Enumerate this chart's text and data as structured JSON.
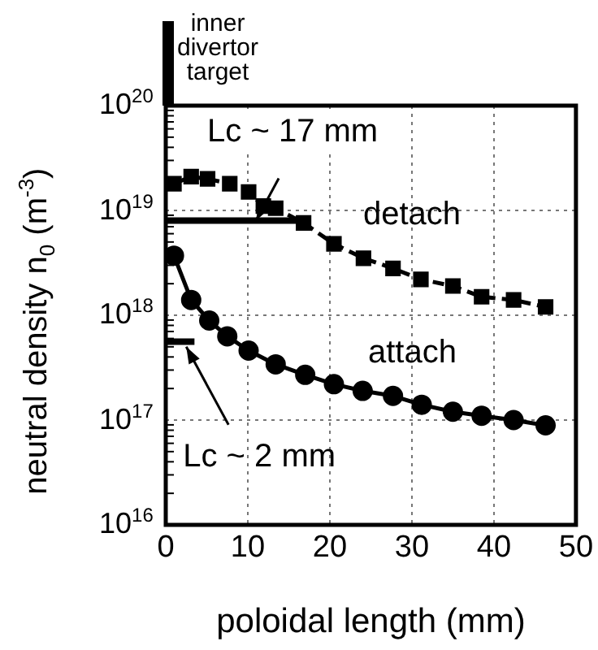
{
  "chart_data": {
    "type": "line",
    "xlabel": "poloidal length (mm)",
    "ylabel": "neutral density  n$_{0}$ (m$^{-3}$)",
    "log": "y",
    "grid": true,
    "xlim": [
      0,
      50
    ],
    "xticks": [
      0,
      10,
      20,
      30,
      40,
      50
    ],
    "ylim": [
      1e+16,
      1e+20
    ],
    "yticks": [
      {
        "value": 1e+16,
        "label": "10$^{16}$"
      },
      {
        "value": 1e+17,
        "label": "10$^{17}$"
      },
      {
        "value": 1e+18,
        "label": "10$^{18}$"
      },
      {
        "value": 1e+19,
        "label": "10$^{19}$"
      },
      {
        "value": 1e+20,
        "label": "10$^{20}$"
      }
    ],
    "series": [
      {
        "color": "#000000",
        "marker": "square",
        "line_style": "dashed",
        "x": [
          1,
          3.1,
          5.1,
          7.8,
          10.1,
          11.9,
          13.4,
          16.8,
          20.5,
          24.1,
          27.7,
          31.1,
          35,
          38.5,
          42.4,
          46.3
        ],
        "values": [
          1.8e+19,
          2.1e+19,
          2e+19,
          1.8e+19,
          1.5e+19,
          1.1e+19,
          1.05e+19,
          7.6e+18,
          4.8e+18,
          3.5e+18,
          2.8e+18,
          2.2e+18,
          1.9e+18,
          1.5e+18,
          1.4e+18,
          1.2e+18
        ]
      },
      {
        "color": "#000000",
        "marker": "circle",
        "line_style": "solid",
        "x": [
          1,
          3.1,
          5.3,
          7.5,
          10.1,
          13.4,
          17,
          20.5,
          24,
          27.7,
          31.2,
          35,
          38.5,
          42.4,
          46.3
        ],
        "values": [
          3.7e+18,
          1.4e+18,
          8.9e+17,
          6.3e+17,
          4.6e+17,
          3.4e+17,
          2.7e+17,
          2.2e+17,
          1.9e+17,
          1.7e+17,
          1.4e+17,
          1.2e+17,
          1.1e+17,
          1e+17,
          8.9e+16
        ]
      },
      {
        "color": "#000000",
        "marker": "none",
        "line_style": "solid",
        "x": [
          0,
          17
        ],
        "values": [
          8e+18,
          8e+18
        ]
      },
      {
        "color": "#000000",
        "marker": "none",
        "line_style": "solid",
        "x": [
          0,
          3.5
        ],
        "values": [
          5.6e+17,
          5.6e+17
        ]
      }
    ],
    "annotations": [
      "inner divertor target",
      {
        "text": "Lc ~ 17 mm",
        "x": 11,
        "y": 8e+18
      },
      {
        "text": "Lc ~ 2 mm",
        "x": 2.5,
        "y": 5e+17
      },
      "detach",
      "attach"
    ]
  }
}
